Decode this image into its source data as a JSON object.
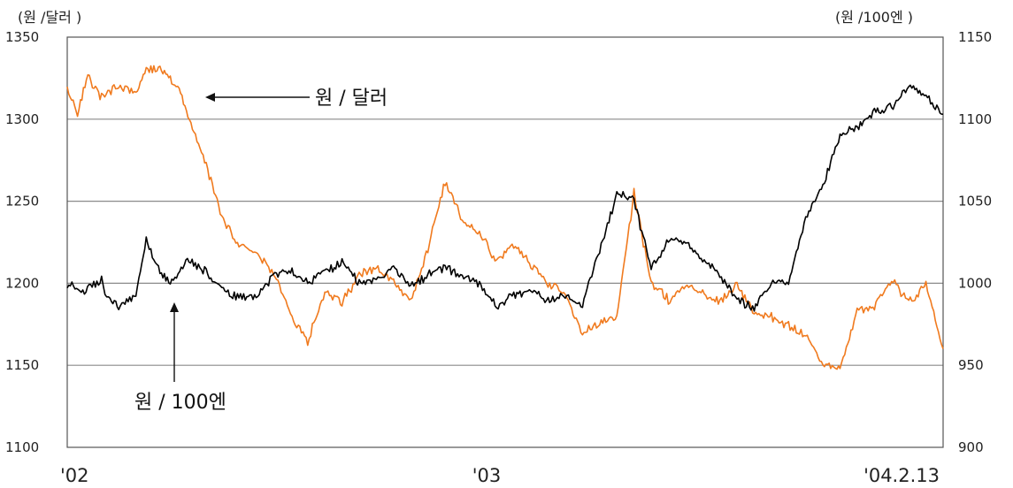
{
  "chart_data": {
    "type": "line",
    "left_unit_label": "(원 /달러 )",
    "right_unit_label": "(원 /100엔 )",
    "y_left": {
      "lim": [
        1100,
        1350
      ],
      "ticks": [
        "1350",
        "1300",
        "1250",
        "1200",
        "1150",
        "1100"
      ]
    },
    "y_right": {
      "lim": [
        900,
        1150
      ],
      "ticks": [
        "1150",
        "1100",
        "1050",
        "1000",
        "950",
        "900"
      ]
    },
    "x_ticks": [
      "'02",
      "'03",
      "'04.2.13"
    ],
    "grid": true,
    "series": [
      {
        "name": "원 / 달러",
        "axis": "left",
        "color": "#f07a1e",
        "x": [
          0,
          0.3,
          0.6,
          1.0,
          1.5,
          2.0,
          2.3,
          2.7,
          3.0,
          3.3,
          3.6,
          4.0,
          4.5,
          5.0,
          5.5,
          6.0,
          6.5,
          7.0,
          7.5,
          8.0,
          8.5,
          9.0,
          9.5,
          10.0,
          10.5,
          11.0,
          11.5,
          12.0,
          12.5,
          13.0,
          13.5,
          14.0,
          14.5,
          15.0,
          15.5,
          16.0,
          16.5,
          17.0,
          17.5,
          18.0,
          18.5,
          19.0,
          19.5,
          20.0,
          20.5,
          21.0,
          21.5,
          22.0,
          22.5,
          23.0,
          23.5,
          24.0,
          24.5,
          25.0,
          25.5
        ],
        "values": [
          1318,
          1304,
          1326,
          1313,
          1320,
          1316,
          1330,
          1331,
          1325,
          1316,
          1297,
          1276,
          1240,
          1223,
          1218,
          1207,
          1180,
          1165,
          1194,
          1188,
          1205,
          1210,
          1200,
          1190,
          1220,
          1262,
          1238,
          1232,
          1212,
          1224,
          1211,
          1200,
          1193,
          1170,
          1175,
          1180,
          1255,
          1200,
          1190,
          1199,
          1194,
          1188,
          1200,
          1182,
          1180,
          1174,
          1168,
          1151,
          1148,
          1182,
          1186,
          1202,
          1189,
          1199,
          1160
        ]
      },
      {
        "name": "원 / 100엔",
        "axis": "right",
        "color": "#000000",
        "x": [
          0,
          0.5,
          1.0,
          1.2,
          1.5,
          2.0,
          2.3,
          2.7,
          3.0,
          3.5,
          4.0,
          4.5,
          5.0,
          5.5,
          6.0,
          6.5,
          7.0,
          7.5,
          8.0,
          8.5,
          9.0,
          9.5,
          10.0,
          10.5,
          11.0,
          11.5,
          12.0,
          12.5,
          13.0,
          13.5,
          14.0,
          14.5,
          15.0,
          15.5,
          16.0,
          16.5,
          17.0,
          17.5,
          18.0,
          18.5,
          19.0,
          19.5,
          20.0,
          20.5,
          21.0,
          21.5,
          22.0,
          22.5,
          23.0,
          23.5,
          24.0,
          24.5,
          25.0,
          25.5
        ],
        "values": [
          1000,
          994,
          1002,
          990,
          985,
          992,
          1026,
          1007,
          1000,
          1013,
          1008,
          996,
          992,
          990,
          1005,
          1007,
          1000,
          1008,
          1012,
          1000,
          1002,
          1010,
          998,
          1005,
          1010,
          1004,
          1000,
          986,
          993,
          995,
          990,
          993,
          986,
          1020,
          1055,
          1050,
          1010,
          1025,
          1025,
          1015,
          1005,
          990,
          985,
          1000,
          1000,
          1040,
          1060,
          1090,
          1095,
          1105,
          1108,
          1120,
          1115,
          1103
        ]
      }
    ],
    "annotations": [
      {
        "text": "원 / 달러"
      },
      {
        "text": "원 / 100엔"
      }
    ]
  }
}
